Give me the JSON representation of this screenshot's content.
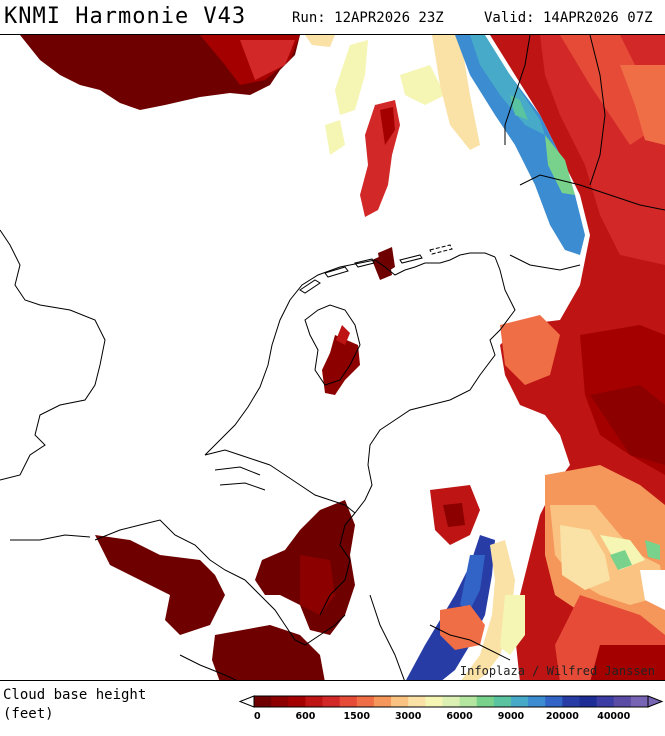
{
  "header": {
    "title": "KNMI Harmonie V43",
    "run": "Run: 12APR2026 23Z",
    "valid": "Valid: 14APR2026 07Z"
  },
  "map": {
    "credit": "Infoplaza / Wilfred Janssen",
    "field": "Cloud base height"
  },
  "legend": {
    "label_line1": "Cloud base height",
    "label_line2": "(feet)",
    "colors": [
      "#6e0000",
      "#8c0000",
      "#a50000",
      "#be1414",
      "#d22828",
      "#e64b37",
      "#f06e46",
      "#f5965a",
      "#fac382",
      "#fae1a5",
      "#f5f5b4",
      "#dcf0b4",
      "#b4e6a0",
      "#78d28c",
      "#5ac3a0",
      "#46aac8",
      "#3c8cd2",
      "#3264c8",
      "#283ca5",
      "#1e2d96",
      "#3c3ca5",
      "#5a4ba5",
      "#7864b4"
    ],
    "ticks": [
      {
        "label": "0",
        "index": 0
      },
      {
        "label": "600",
        "index": 3
      },
      {
        "label": "1500",
        "index": 6
      },
      {
        "label": "3000",
        "index": 9
      },
      {
        "label": "6000",
        "index": 12
      },
      {
        "label": "9000",
        "index": 15
      },
      {
        "label": "20000",
        "index": 18
      },
      {
        "label": "40000",
        "index": 21
      }
    ]
  }
}
